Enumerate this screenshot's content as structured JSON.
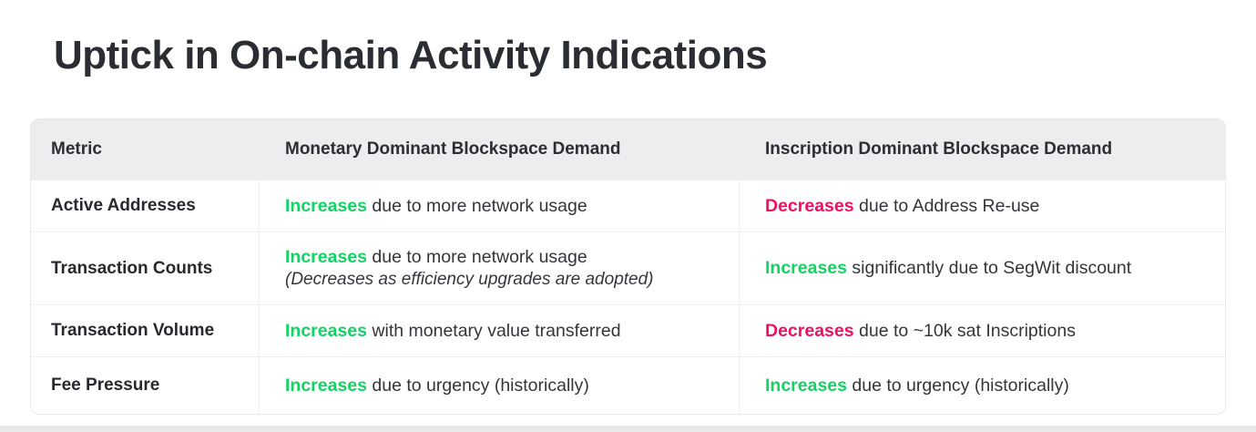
{
  "page": {
    "title": "Uptick in On-chain Activity Indications"
  },
  "colors": {
    "increase_keyword": "#14d264",
    "decrease_keyword": "#ed1164",
    "header_background": "#edecef",
    "title_text": "#2a2d32",
    "body_text": "#33353a",
    "bottom_bar": "#e7eae7"
  },
  "table": {
    "columns": {
      "metric": "Metric",
      "monetary": "Monetary Dominant Blockspace Demand",
      "inscription": "Inscription Dominant Blockspace Demand"
    },
    "rows": [
      {
        "metric": "Active Addresses",
        "monetary": {
          "keyword": "Increases",
          "direction": "increase",
          "rest": " due to more network usage"
        },
        "inscription": {
          "keyword": "Decreases",
          "direction": "decrease",
          "rest": " due to Address Re-use"
        }
      },
      {
        "metric": "Transaction Counts",
        "monetary": {
          "keyword": "Increases",
          "direction": "increase",
          "rest": " due to more network usage",
          "note": "(Decreases as efficiency upgrades are adopted)"
        },
        "inscription": {
          "keyword": "Increases",
          "direction": "increase",
          "rest": " significantly due to SegWit discount"
        }
      },
      {
        "metric": "Transaction Volume",
        "monetary": {
          "keyword": "Increases",
          "direction": "increase",
          "rest": " with monetary value transferred"
        },
        "inscription": {
          "keyword": "Decreases",
          "direction": "decrease",
          "rest": " due to ~10k sat Inscriptions"
        }
      },
      {
        "metric": "Fee Pressure",
        "monetary": {
          "keyword": "Increases",
          "direction": "increase",
          "rest": " due to urgency (historically)"
        },
        "inscription": {
          "keyword": "Increases",
          "direction": "increase",
          "rest": " due to urgency (historically)"
        }
      }
    ]
  }
}
